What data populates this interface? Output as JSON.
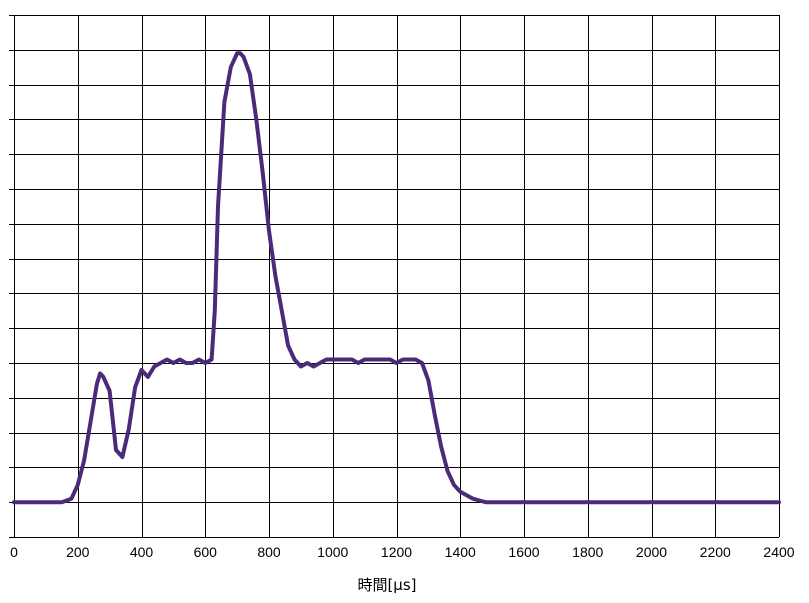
{
  "chart_data": {
    "type": "line",
    "title": "",
    "xlabel": "時間[μs]",
    "ylabel": "",
    "xlim": [
      0,
      2400
    ],
    "x_ticks": [
      0,
      200,
      400,
      600,
      800,
      1000,
      1200,
      1400,
      1600,
      1800,
      2000,
      2200,
      2400
    ],
    "x_tick_labels": [
      "0",
      "200",
      "400",
      "600",
      "800",
      "1000",
      "1200",
      "1400",
      "1600",
      "1800",
      "2000",
      "2200",
      "2400"
    ],
    "ylim": [
      0,
      14
    ],
    "y_gridlines": 14,
    "y_tick_labels_shown": false,
    "grid": true,
    "legend": "none",
    "series": [
      {
        "color": "#4b2a7a",
        "x": [
          0,
          50,
          100,
          150,
          180,
          200,
          220,
          240,
          260,
          270,
          280,
          300,
          320,
          340,
          360,
          380,
          400,
          420,
          440,
          460,
          480,
          500,
          520,
          540,
          560,
          580,
          600,
          620,
          630,
          640,
          660,
          680,
          700,
          710,
          720,
          740,
          760,
          780,
          800,
          820,
          840,
          860,
          880,
          900,
          920,
          940,
          960,
          980,
          1000,
          1020,
          1040,
          1060,
          1080,
          1100,
          1120,
          1140,
          1160,
          1180,
          1200,
          1220,
          1240,
          1260,
          1280,
          1300,
          1320,
          1340,
          1360,
          1380,
          1400,
          1420,
          1440,
          1460,
          1480,
          1500,
          1600,
          1800,
          2000,
          2200,
          2400
        ],
        "y": [
          0.0,
          0.0,
          0.0,
          0.0,
          0.1,
          0.5,
          1.2,
          2.3,
          3.4,
          3.7,
          3.6,
          3.2,
          1.5,
          1.3,
          2.1,
          3.3,
          3.8,
          3.6,
          3.9,
          4.0,
          4.1,
          4.0,
          4.1,
          4.0,
          4.0,
          4.1,
          4.0,
          4.1,
          5.5,
          8.5,
          11.5,
          12.5,
          12.9,
          12.9,
          12.8,
          12.3,
          11.0,
          9.5,
          7.8,
          6.5,
          5.5,
          4.5,
          4.1,
          3.9,
          4.0,
          3.9,
          4.0,
          4.1,
          4.1,
          4.1,
          4.1,
          4.1,
          4.0,
          4.1,
          4.1,
          4.1,
          4.1,
          4.1,
          4.0,
          4.1,
          4.1,
          4.1,
          4.0,
          3.5,
          2.5,
          1.6,
          0.9,
          0.5,
          0.3,
          0.2,
          0.1,
          0.05,
          0.0,
          0.0,
          0.0,
          0.0,
          0.0,
          0.0,
          0.0
        ]
      }
    ]
  }
}
